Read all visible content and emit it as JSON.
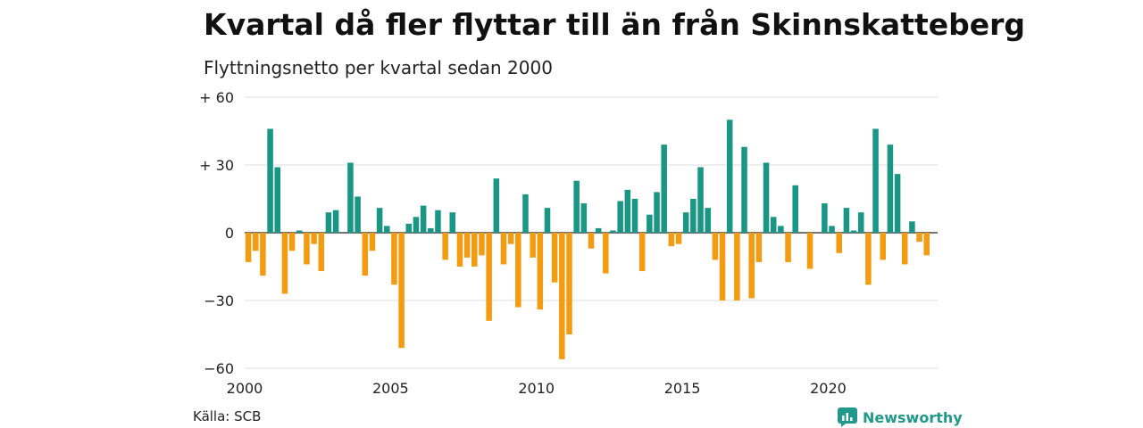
{
  "title": "Kvartal då fler flyttar till än från Skinnskatteberg",
  "subtitle": "Flyttningsnetto per kvartal sedan 2000",
  "source": "Källa: SCB",
  "brand": "Newsworthy",
  "colors": {
    "positive": "#1a9685",
    "negative": "#f39c12",
    "grid": "#dddddd",
    "zero": "#222222"
  },
  "chart_data": {
    "type": "bar",
    "ylim": [
      -60,
      60
    ],
    "yticks": [
      60,
      30,
      0,
      -30,
      -60
    ],
    "ytick_labels": [
      "+ 60",
      "+ 30",
      "0",
      "−30",
      "−60"
    ],
    "x_range": [
      2000,
      2023.75
    ],
    "xticks": [
      2000,
      2005,
      2010,
      2015,
      2020
    ],
    "xtick_labels": [
      "2000",
      "2005",
      "2010",
      "2015",
      "2020"
    ],
    "start_year": 2000,
    "values": [
      -13,
      -8,
      -19,
      46,
      29,
      -27,
      -8,
      1,
      -14,
      -5,
      -17,
      9,
      10,
      0,
      31,
      16,
      -19,
      -8,
      11,
      3,
      -23,
      -51,
      4,
      7,
      12,
      2,
      10,
      -12,
      9,
      -15,
      -11,
      -15,
      -10,
      -39,
      24,
      -14,
      -5,
      -33,
      17,
      -11,
      -34,
      11,
      -22,
      -56,
      -45,
      23,
      13,
      -7,
      2,
      -18,
      1,
      14,
      19,
      15,
      -17,
      8,
      18,
      39,
      -6,
      -5,
      9,
      15,
      29,
      11,
      -12,
      -30,
      50,
      -30,
      38,
      -29,
      -13,
      31,
      7,
      3,
      -13,
      21,
      0,
      -16,
      0,
      13,
      3,
      -9,
      11,
      1,
      9,
      -23,
      46,
      -12,
      39,
      26,
      -14,
      5,
      -4,
      -10
    ]
  }
}
